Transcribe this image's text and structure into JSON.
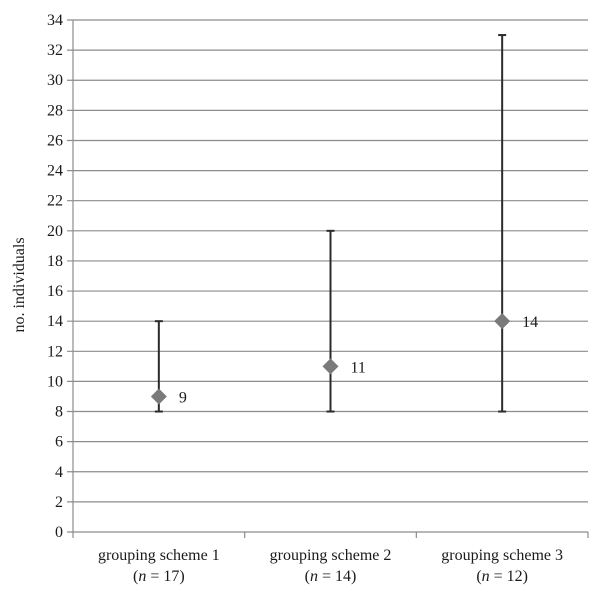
{
  "chart_data": {
    "type": "scatter",
    "title": "",
    "xlabel": "",
    "ylabel": "no. individuals",
    "ylim": [
      0,
      34
    ],
    "ytick_step": 2,
    "grid": true,
    "categories": [
      {
        "label": "grouping scheme 1",
        "n_label": "(n = 17)",
        "n_prefix": "n",
        "n_value": "= 17"
      },
      {
        "label": "grouping scheme 2",
        "n_label": "(n = 14)",
        "n_prefix": "n",
        "n_value": "= 14"
      },
      {
        "label": "grouping scheme 3",
        "n_label": "(n = 12)",
        "n_prefix": "n",
        "n_value": "= 12"
      }
    ],
    "series": [
      {
        "values": [
          9,
          11,
          14
        ],
        "lower": [
          8,
          8,
          8
        ],
        "upper": [
          14,
          20,
          33
        ],
        "data_labels": [
          "9",
          "11",
          "14"
        ]
      }
    ],
    "colors": {
      "marker": "#7a7a7a",
      "error_bar": "#2b2b2b",
      "grid": "#8c8c8c"
    }
  }
}
